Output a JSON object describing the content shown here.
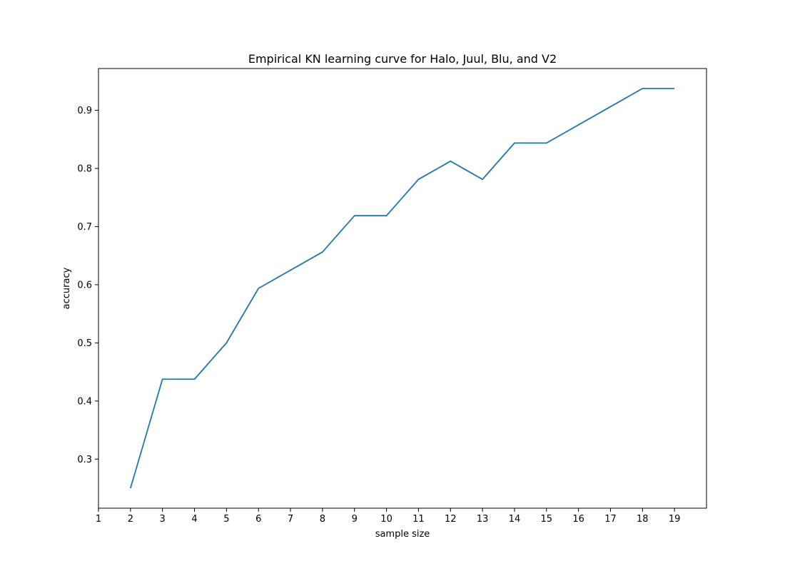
{
  "chart_data": {
    "type": "line",
    "title": "Empirical KN learning curve for Halo, Juul, Blu, and V2",
    "xlabel": "sample size",
    "ylabel": "accuracy",
    "x": [
      2,
      3,
      4,
      5,
      6,
      7,
      8,
      9,
      10,
      11,
      12,
      13,
      14,
      15,
      16,
      17,
      18,
      19
    ],
    "series": [
      {
        "values": [
          0.25,
          0.4375,
          0.4375,
          0.5,
          0.59375,
          0.625,
          0.65625,
          0.71875,
          0.71875,
          0.78125,
          0.8125,
          0.78125,
          0.84375,
          0.84375,
          0.875,
          0.90625,
          0.9375,
          0.9375
        ],
        "color": "#1f77b4"
      }
    ],
    "xticks": [
      "1",
      "2",
      "3",
      "4",
      "5",
      "6",
      "7",
      "8",
      "9",
      "10",
      "11",
      "12",
      "13",
      "14",
      "15",
      "16",
      "17",
      "18",
      "19"
    ],
    "yticks": [
      "0.3",
      "0.4",
      "0.5",
      "0.6",
      "0.7",
      "0.8",
      "0.9"
    ],
    "xlim": [
      1,
      20
    ],
    "ylim": [
      0.2156,
      0.9719
    ],
    "grid": false,
    "legend": "none"
  }
}
